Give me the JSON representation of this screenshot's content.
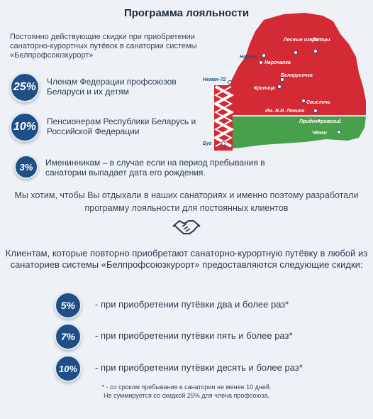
{
  "title": "Программа лояльности",
  "intro": "Постоянно действующие скидки при приобретении санаторно-курортных путёвок в санатории системы «Белпрофсоюзкурорт»",
  "offers": [
    {
      "badge": "25%",
      "text": "Членам Федерации профсоюзов Беларуси и их детям"
    },
    {
      "badge": "10%",
      "text": "Пенсионерам Республики Беларусь и Российской Федерации"
    },
    {
      "badge": "3%",
      "text": "Именинникам – в случае если на период пребывания в санатории выпадает дата его рождения."
    }
  ],
  "message": "Мы хотим, чтобы Вы отдыхали в наших санаториях и именно поэтому разработали программу лояльности для постоянных клиентов",
  "clients_intro": "Клиентам, которые повторно приобретают санаторно-курортную путёвку в любой из санаториев системы «Белпрофсоюзкурорт» предоставляются следующие скидки:",
  "discounts": [
    {
      "badge": "5%",
      "text": "- при приобретении путёвки два и более раз*"
    },
    {
      "badge": "7%",
      "text": "- при приобретении путёвки пять и более раз*"
    },
    {
      "badge": "10%",
      "text": "- при приобретении путёвки десять и более раз*"
    }
  ],
  "footnote": [
    "* - со сроком пребывания в санатории не менее 10 дней.",
    "Не суммируется со скидкой 25% для члена профсоюза."
  ],
  "map": {
    "places": [
      "Лесные озера",
      "Лётцы",
      "Нарочь",
      "Нарочанка",
      "Неман-72",
      "Белорусочка",
      "Криница",
      "Свислочь",
      "Им. В.И. Ленина",
      "Приднепровский",
      "Чёнки",
      "Буг"
    ]
  },
  "colors": {
    "badge": "#1f4f86",
    "map_red": "#d32a36",
    "map_green": "#49a04a",
    "background": "#eef2f6"
  },
  "icons": [
    "handshake-icon",
    "map-marker-icon"
  ]
}
